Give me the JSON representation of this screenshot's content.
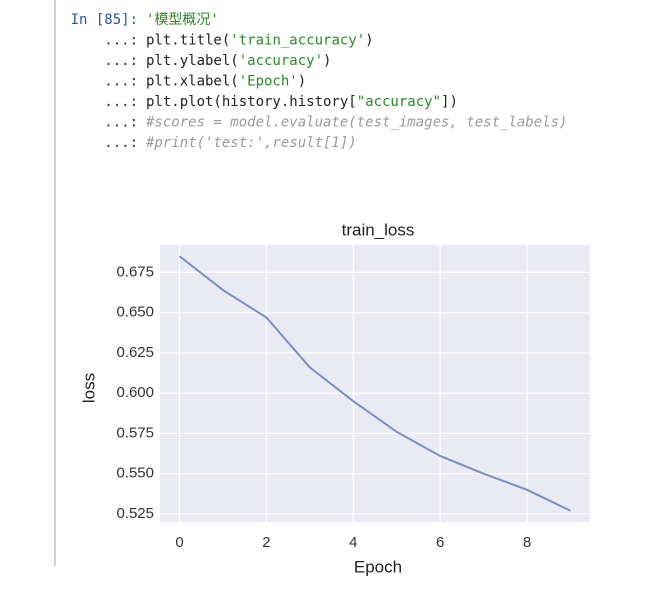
{
  "code_lines": [
    {
      "prompt": "In [85]:",
      "prompt_color": "#24579b",
      "segments": [
        {
          "text": "'模型概况'",
          "color": "#2a8a2a"
        }
      ]
    },
    {
      "prompt": "...:",
      "prompt_color": "#333333",
      "segments": [
        {
          "text": "plt.title(",
          "color": "#222222"
        },
        {
          "text": "'train_accuracy'",
          "color": "#2a8a2a"
        },
        {
          "text": ")",
          "color": "#222222"
        }
      ]
    },
    {
      "prompt": "...:",
      "prompt_color": "#333333",
      "segments": [
        {
          "text": "plt.ylabel(",
          "color": "#222222"
        },
        {
          "text": "'accuracy'",
          "color": "#2a8a2a"
        },
        {
          "text": ")",
          "color": "#222222"
        }
      ]
    },
    {
      "prompt": "...:",
      "prompt_color": "#333333",
      "segments": [
        {
          "text": "plt.xlabel(",
          "color": "#222222"
        },
        {
          "text": "'Epoch'",
          "color": "#2a8a2a"
        },
        {
          "text": ")",
          "color": "#222222"
        }
      ]
    },
    {
      "prompt": "...:",
      "prompt_color": "#333333",
      "segments": [
        {
          "text": "plt.plot(history.history[",
          "color": "#222222"
        },
        {
          "text": "\"accuracy\"",
          "color": "#2a8a2a"
        },
        {
          "text": "])",
          "color": "#222222"
        }
      ]
    },
    {
      "prompt": "...:",
      "prompt_color": "#333333",
      "segments": [
        {
          "text": "#scores = model.evaluate(test_images, test_labels)",
          "color": "#9a9a9a",
          "italic": true
        }
      ]
    },
    {
      "prompt": "...:",
      "prompt_color": "#333333",
      "segments": [
        {
          "text": "#print('test:',result[1])",
          "color": "#9a9a9a",
          "italic": true
        }
      ]
    }
  ],
  "chart_data": {
    "type": "line",
    "title": "train_loss",
    "xlabel": "Epoch",
    "ylabel": "loss",
    "x": [
      0,
      1,
      2,
      3,
      4,
      5,
      6,
      7,
      8,
      9
    ],
    "values": [
      0.685,
      0.664,
      0.647,
      0.616,
      0.595,
      0.576,
      0.561,
      0.55,
      0.54,
      0.527
    ],
    "color": "#7a8ec6",
    "background": "#eaeaf2",
    "grid": true,
    "xlim": [
      -0.45,
      9.45
    ],
    "xticks": [
      0,
      2,
      4,
      6,
      8
    ],
    "ylim": [
      0.52,
      0.692
    ],
    "yticks": [
      {
        "value": 0.525,
        "label": "0.525"
      },
      {
        "value": 0.55,
        "label": "0.550"
      },
      {
        "value": 0.575,
        "label": "0.575"
      },
      {
        "value": 0.6,
        "label": "0.600"
      },
      {
        "value": 0.625,
        "label": "0.625"
      },
      {
        "value": 0.65,
        "label": "0.650"
      },
      {
        "value": 0.675,
        "label": "0.675"
      }
    ]
  }
}
